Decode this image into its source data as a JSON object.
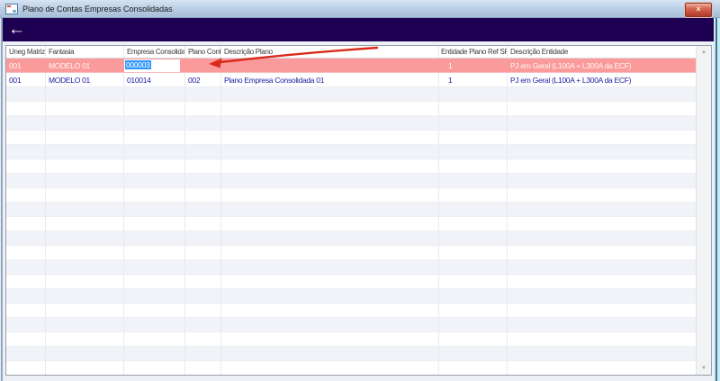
{
  "window": {
    "title": "Plano de Contas Empresas Consolidadas",
    "close_glyph": "×"
  },
  "toolbar": {
    "back_glyph": "←"
  },
  "grid": {
    "columns": [
      "Uneg Matriz",
      "Fantasia",
      "Empresa Consolidada",
      "Plano Contas",
      "Descrição Plano",
      "Entidade Plano Ref SPED",
      "Descrição Entidade"
    ],
    "rows": [
      {
        "state": "selected-editing",
        "cells": [
          "001",
          "MODELO 01",
          "",
          "",
          "",
          "1",
          "PJ em Geral (L100A + L300A da ECF)"
        ],
        "editor": {
          "column": "Empresa Consolidada",
          "value": "000003",
          "text_selected": true
        }
      },
      {
        "state": "normal",
        "cells": [
          "001",
          "MODELO 01",
          "010014",
          "002",
          "Plano Empresa Consolidada 01",
          "1",
          "PJ em Geral (L100A + L300A da ECF)"
        ]
      }
    ],
    "empty_row_count": 20,
    "scrollbar": {
      "up_glyph": "▲",
      "down_glyph": "▼"
    }
  },
  "annotation": {
    "type": "red-arrow",
    "color": "#d92a1c"
  },
  "colors": {
    "toolbar_bg": "#1e0052",
    "selected_row_bg": "#fa9a9a",
    "row_text": "#1c1ca0",
    "text_selection_bg": "#3297fd",
    "alt_row_bg": "#f1f3f9",
    "titlebar_top": "#d6e3f2",
    "titlebar_bottom": "#a6bed8"
  }
}
